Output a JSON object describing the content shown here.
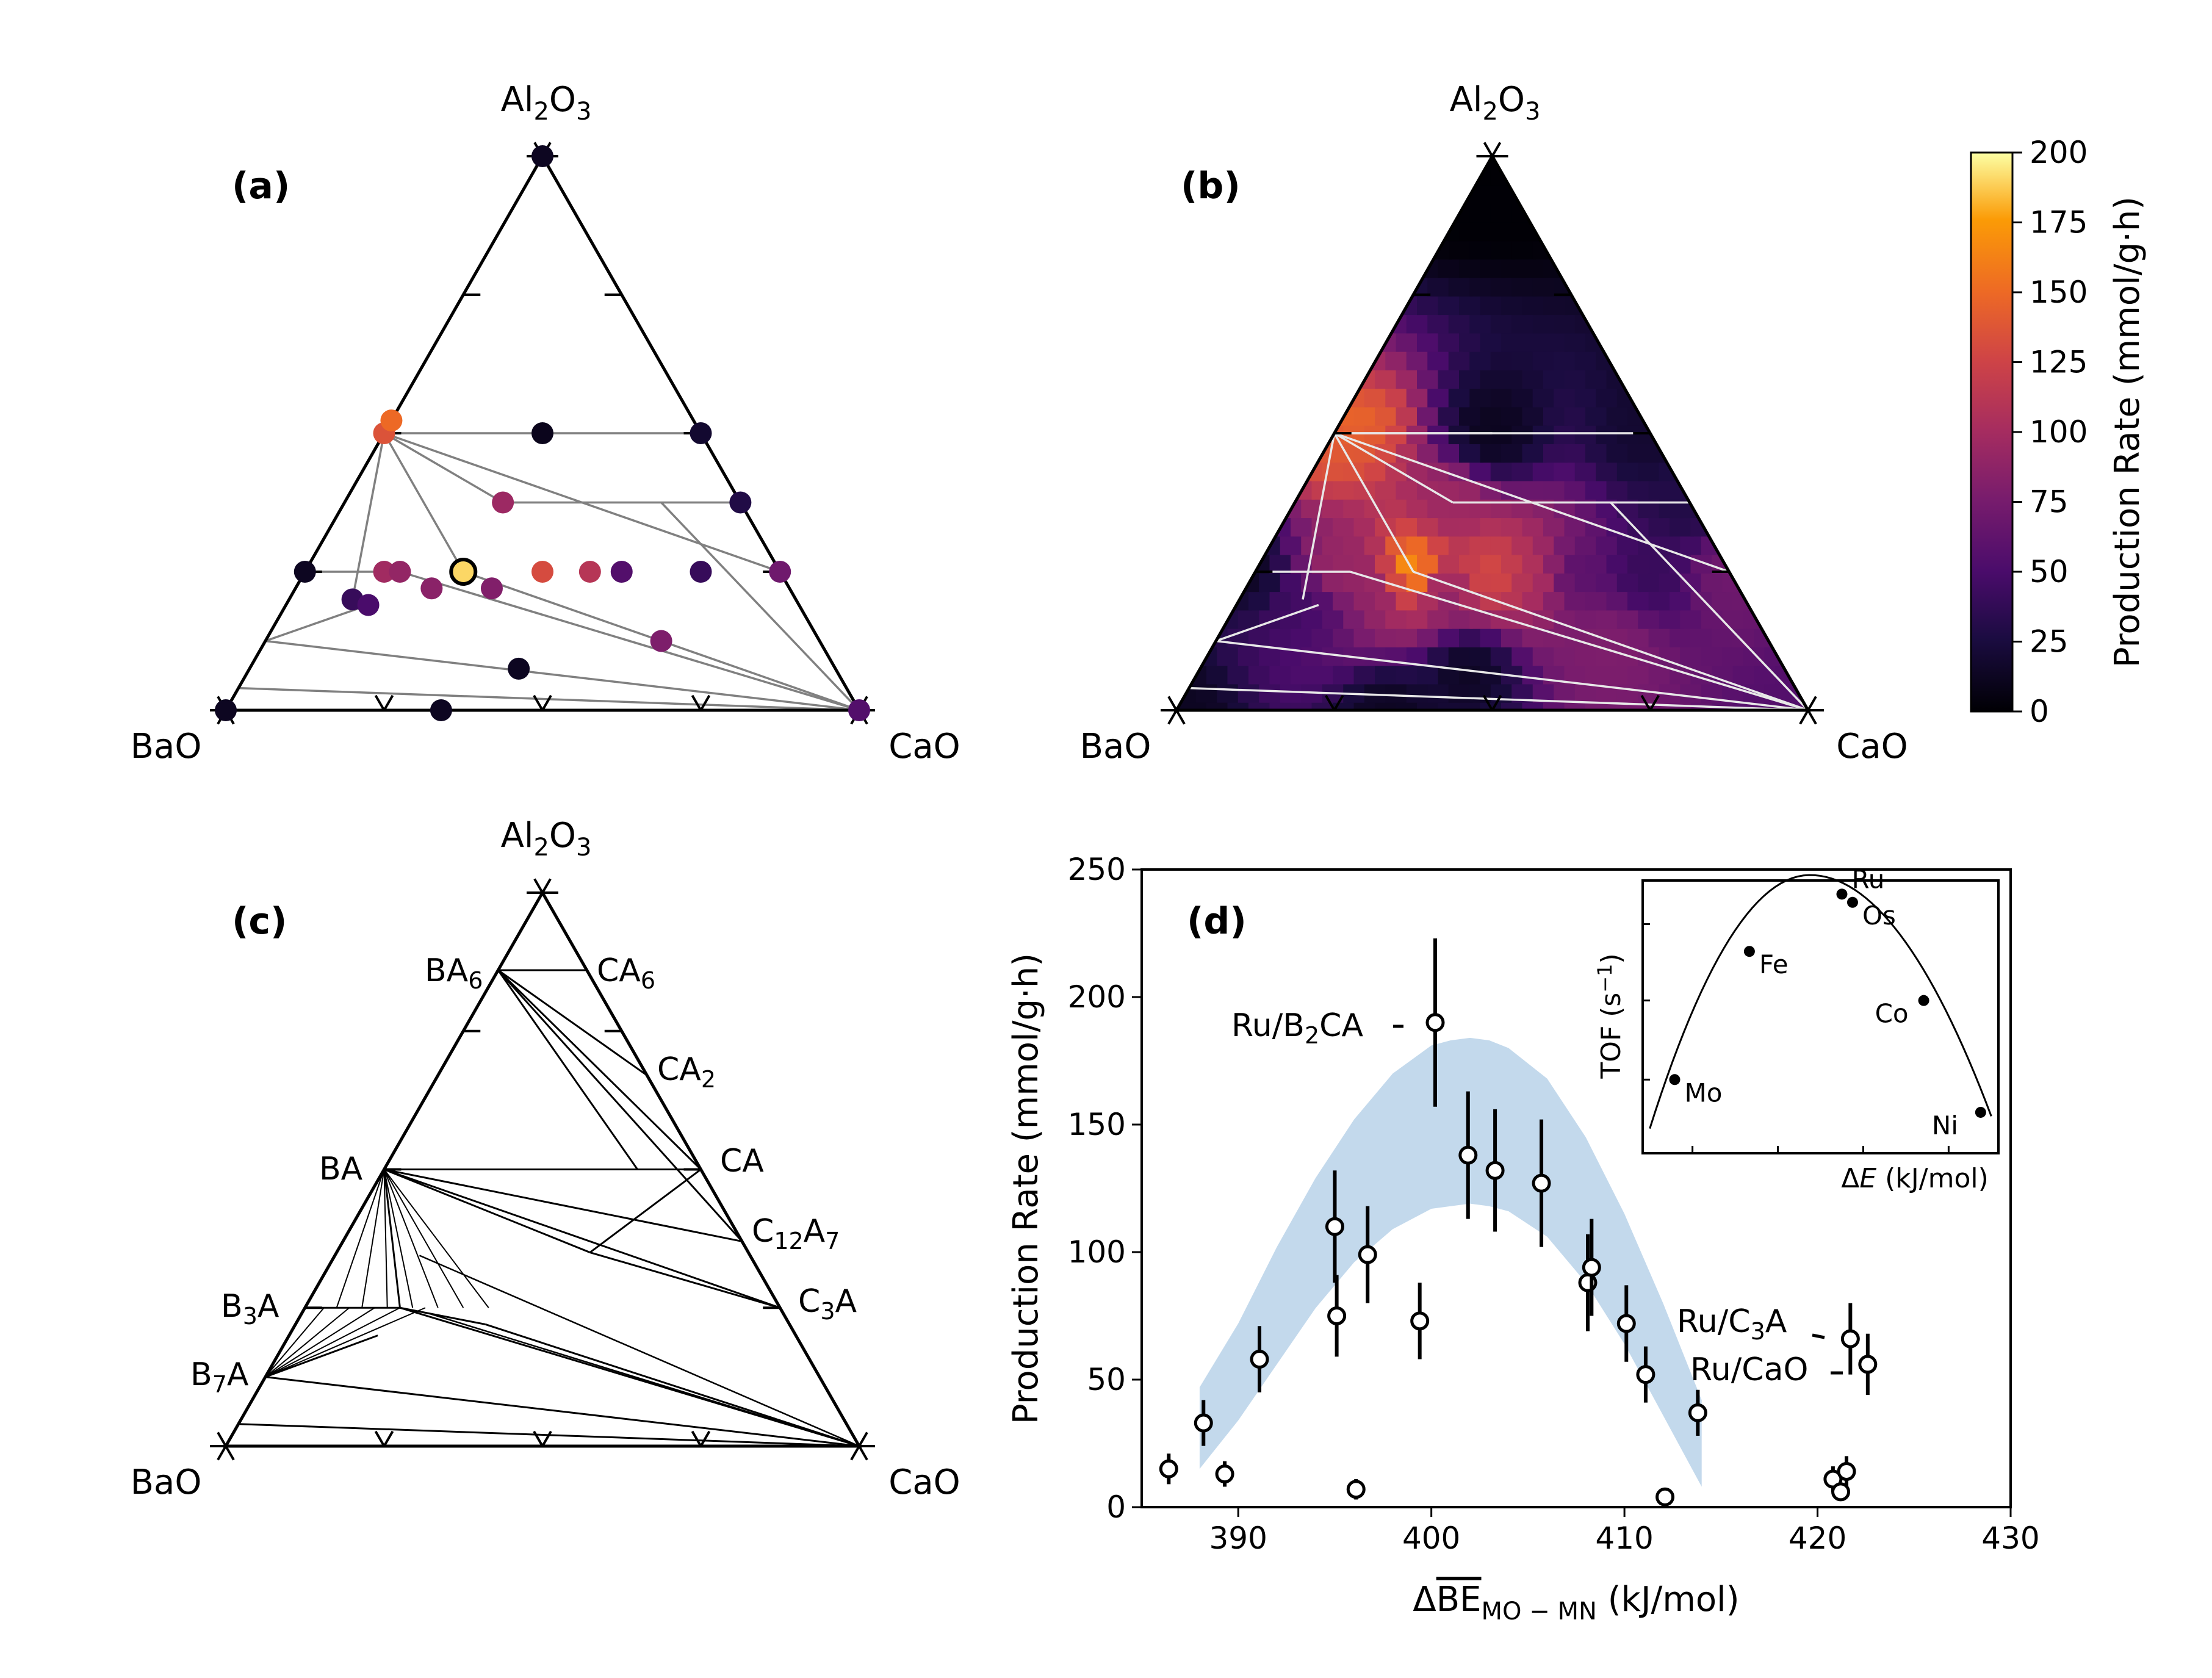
{
  "panels": {
    "a": {
      "label": "(a)",
      "top": "Al2O3",
      "left": "BaO",
      "right": "CaO"
    },
    "b": {
      "label": "(b)",
      "top": "Al2O3",
      "left": "BaO",
      "right": "CaO"
    },
    "c": {
      "label": "(c)",
      "top": "Al2O3",
      "left": "BaO",
      "right": "CaO"
    },
    "d": {
      "label": "(d)"
    }
  },
  "colorbar": {
    "label": "Production Rate (mmol/g·h)",
    "ticks": [
      0,
      25,
      50,
      75,
      100,
      125,
      150,
      175,
      200
    ],
    "range": [
      0,
      200
    ],
    "colormap": "inferno"
  },
  "chart_data": [
    {
      "type": "scatter",
      "panel": "a",
      "ternary_axes": [
        "BaO",
        "CaO",
        "Al2O3"
      ],
      "points": [
        {
          "BaO": 0.0,
          "CaO": 0.0,
          "Al2O3": 1.0,
          "rate": 12
        },
        {
          "BaO": 0.5,
          "CaO": 0.0,
          "Al2O3": 0.5,
          "rate": 135
        },
        {
          "BaO": 0.25,
          "CaO": 0.25,
          "Al2O3": 0.5,
          "rate": 10
        },
        {
          "BaO": 0.0,
          "CaO": 0.5,
          "Al2O3": 0.5,
          "rate": 18
        },
        {
          "BaO": 0.0,
          "CaO": 0.625,
          "Al2O3": 0.375,
          "rate": 28
        },
        {
          "BaO": 0.477,
          "CaO": 0.0,
          "Al2O3": 0.523,
          "rate": 150
        },
        {
          "BaO": 0.375,
          "CaO": 0.25,
          "Al2O3": 0.375,
          "rate": 95
        },
        {
          "BaO": 0.75,
          "CaO": 0.0,
          "Al2O3": 0.25,
          "rate": 12
        },
        {
          "BaO": 0.625,
          "CaO": 0.125,
          "Al2O3": 0.25,
          "rate": 98
        },
        {
          "BaO": 0.6,
          "CaO": 0.15,
          "Al2O3": 0.25,
          "rate": 90
        },
        {
          "BaO": 0.5,
          "CaO": 0.25,
          "Al2O3": 0.25,
          "rate": 190
        },
        {
          "BaO": 0.375,
          "CaO": 0.375,
          "Al2O3": 0.25,
          "rate": 130
        },
        {
          "BaO": 0.3,
          "CaO": 0.45,
          "Al2O3": 0.25,
          "rate": 110
        },
        {
          "BaO": 0.25,
          "CaO": 0.5,
          "Al2O3": 0.25,
          "rate": 55
        },
        {
          "BaO": 0.125,
          "CaO": 0.625,
          "Al2O3": 0.25,
          "rate": 40
        },
        {
          "BaO": 0.0,
          "CaO": 0.75,
          "Al2O3": 0.25,
          "rate": 70
        },
        {
          "BaO": 0.565,
          "CaO": 0.215,
          "Al2O3": 0.22,
          "rate": 85
        },
        {
          "BaO": 0.47,
          "CaO": 0.31,
          "Al2O3": 0.22,
          "rate": 80
        },
        {
          "BaO": 0.7,
          "CaO": 0.1,
          "Al2O3": 0.2,
          "rate": 40
        },
        {
          "BaO": 0.68,
          "CaO": 0.13,
          "Al2O3": 0.19,
          "rate": 50
        },
        {
          "BaO": 0.25,
          "CaO": 0.625,
          "Al2O3": 0.125,
          "rate": 78
        },
        {
          "BaO": 0.5,
          "CaO": 0.425,
          "Al2O3": 0.075,
          "rate": 12
        },
        {
          "BaO": 0.66,
          "CaO": 0.34,
          "Al2O3": 0.0,
          "rate": 12
        },
        {
          "BaO": 1.0,
          "CaO": 0.0,
          "Al2O3": 0.0,
          "rate": 12
        },
        {
          "BaO": 0.0,
          "CaO": 1.0,
          "Al2O3": 0.0,
          "rate": 55
        }
      ]
    },
    {
      "type": "heatmap",
      "panel": "b",
      "ternary_axes": [
        "BaO",
        "CaO",
        "Al2O3"
      ],
      "range": [
        0,
        200
      ]
    },
    {
      "type": "line",
      "panel": "c",
      "phase_labels": [
        {
          "text": "BA6",
          "BaO": 0.14,
          "Al2O3": 0.86
        },
        {
          "text": "CA6",
          "CaO": 0.14,
          "Al2O3": 0.86
        },
        {
          "text": "CA2",
          "CaO": 0.33,
          "Al2O3": 0.67
        },
        {
          "text": "BA",
          "BaO": 0.5,
          "Al2O3": 0.5
        },
        {
          "text": "CA",
          "CaO": 0.5,
          "Al2O3": 0.5
        },
        {
          "text": "C12A7",
          "CaO": 0.63,
          "Al2O3": 0.37
        },
        {
          "text": "B3A",
          "BaO": 0.75,
          "Al2O3": 0.25
        },
        {
          "text": "C3A",
          "CaO": 0.75,
          "Al2O3": 0.25
        },
        {
          "text": "B7A",
          "BaO": 0.875,
          "Al2O3": 0.125
        }
      ]
    },
    {
      "type": "scatter",
      "panel": "d",
      "xlabel": "ΔBE_MO−MN (kJ/mol)",
      "ylabel": "Production Rate (mmol/g·h)",
      "xlim": [
        385,
        430
      ],
      "ylim": [
        0,
        250
      ],
      "xticks": [
        390,
        400,
        410,
        420,
        430
      ],
      "yticks": [
        0,
        50,
        100,
        150,
        200,
        250
      ],
      "points": [
        {
          "x": 386.4,
          "y": 15,
          "err": 6
        },
        {
          "x": 388.2,
          "y": 33,
          "err": 9
        },
        {
          "x": 389.3,
          "y": 13,
          "err": 5
        },
        {
          "x": 391.1,
          "y": 58,
          "err": 13
        },
        {
          "x": 395.0,
          "y": 110,
          "err": 22
        },
        {
          "x": 395.1,
          "y": 75,
          "err": 16
        },
        {
          "x": 396.1,
          "y": 7,
          "err": 4
        },
        {
          "x": 396.7,
          "y": 99,
          "err": 19
        },
        {
          "x": 399.4,
          "y": 73,
          "err": 15
        },
        {
          "x": 400.2,
          "y": 190,
          "err": 33
        },
        {
          "x": 401.9,
          "y": 138,
          "err": 25
        },
        {
          "x": 403.3,
          "y": 132,
          "err": 24
        },
        {
          "x": 405.7,
          "y": 127,
          "err": 25
        },
        {
          "x": 408.1,
          "y": 88,
          "err": 19
        },
        {
          "x": 408.3,
          "y": 94,
          "err": 19
        },
        {
          "x": 410.1,
          "y": 72,
          "err": 15
        },
        {
          "x": 411.1,
          "y": 52,
          "err": 11
        },
        {
          "x": 412.1,
          "y": 4,
          "err": 3
        },
        {
          "x": 413.8,
          "y": 37,
          "err": 9
        },
        {
          "x": 420.8,
          "y": 11,
          "err": 5
        },
        {
          "x": 421.2,
          "y": 6,
          "err": 3
        },
        {
          "x": 421.5,
          "y": 14,
          "err": 6
        },
        {
          "x": 421.7,
          "y": 66,
          "err": 14
        },
        {
          "x": 422.6,
          "y": 56,
          "err": 12
        }
      ],
      "band": {
        "x": [
          388,
          390,
          392,
          394,
          396,
          398,
          400,
          401,
          402,
          403,
          404,
          406,
          408,
          410,
          412,
          414
        ],
        "upper": [
          47,
          72,
          102,
          129,
          152,
          170,
          181,
          183,
          184,
          183,
          180,
          168,
          145,
          115,
          80,
          42
        ],
        "lower": [
          15,
          34,
          56,
          78,
          96,
          109,
          117,
          118,
          119,
          118,
          116,
          106,
          88,
          64,
          36,
          8
        ]
      },
      "annotations": [
        {
          "text": "Ru/B2CA"
        },
        {
          "text": "Ru/C3A"
        },
        {
          "text": "Ru/CaO"
        }
      ],
      "inset": {
        "ylabel": "TOF (s⁻¹)",
        "xlabel": "ΔE (kJ/mol)",
        "points": [
          {
            "label": "Mo",
            "x": 0.09,
            "y": 0.27
          },
          {
            "label": "Fe",
            "x": 0.3,
            "y": 0.74
          },
          {
            "label": "Ru",
            "x": 0.56,
            "y": 0.95
          },
          {
            "label": "Os",
            "x": 0.59,
            "y": 0.92
          },
          {
            "label": "Co",
            "x": 0.79,
            "y": 0.56
          },
          {
            "label": "Ni",
            "x": 0.95,
            "y": 0.15
          }
        ]
      }
    }
  ]
}
